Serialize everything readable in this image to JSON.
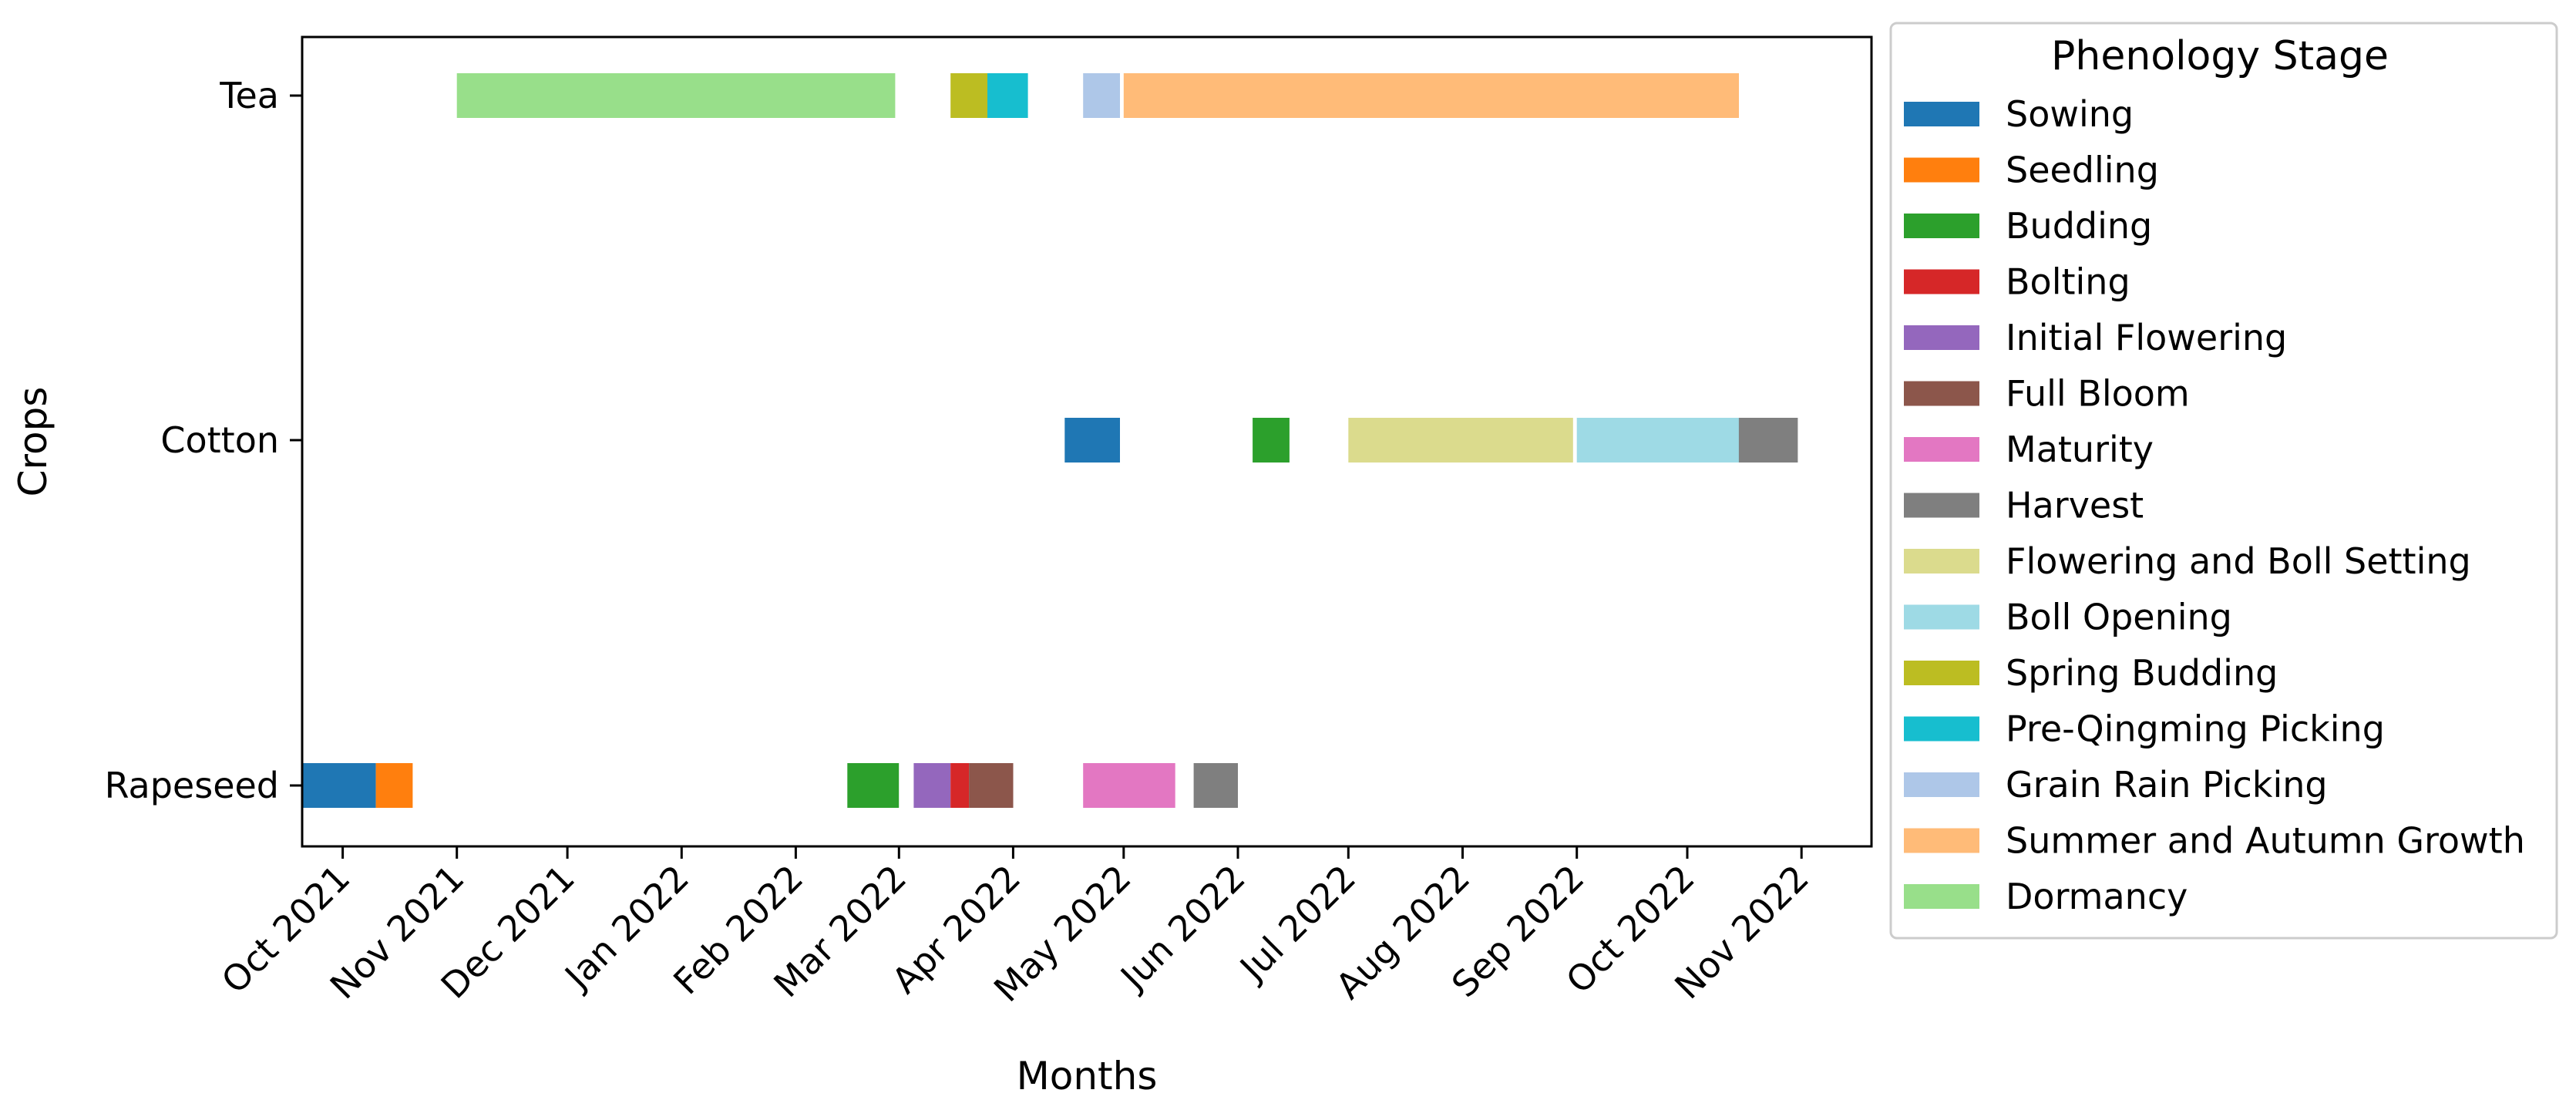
{
  "chart_data": {
    "type": "gantt",
    "xlabel": "Months",
    "ylabel": "Crops",
    "x_tick_labels": [
      "Oct 2021",
      "Nov 2021",
      "Dec 2021",
      "Jan 2022",
      "Feb 2022",
      "Mar 2022",
      "Apr 2022",
      "May 2022",
      "Jun 2022",
      "Jul 2022",
      "Aug 2022",
      "Sep 2022",
      "Oct 2022",
      "Nov 2022"
    ],
    "x_ticks": [
      "2021-10-01",
      "2021-11-01",
      "2021-12-01",
      "2022-01-01",
      "2022-02-01",
      "2022-03-01",
      "2022-04-01",
      "2022-05-01",
      "2022-06-01",
      "2022-07-01",
      "2022-08-01",
      "2022-09-01",
      "2022-10-01",
      "2022-11-01"
    ],
    "xlim": [
      "2021-09-20",
      "2022-11-20"
    ],
    "crops": [
      "Tea",
      "Cotton",
      "Rapeseed"
    ],
    "legend_title": "Phenology Stage",
    "legend_position": "outside-right",
    "stages": [
      {
        "name": "Sowing",
        "color": "#1f77b4"
      },
      {
        "name": "Seedling",
        "color": "#ff7f0e"
      },
      {
        "name": "Budding",
        "color": "#2ca02c"
      },
      {
        "name": "Bolting",
        "color": "#d62728"
      },
      {
        "name": "Initial Flowering",
        "color": "#9467bd"
      },
      {
        "name": "Full Bloom",
        "color": "#8c564b"
      },
      {
        "name": "Maturity",
        "color": "#e377c2"
      },
      {
        "name": "Harvest",
        "color": "#7f7f7f"
      },
      {
        "name": "Flowering and Boll Setting",
        "color": "#dbdb8d"
      },
      {
        "name": "Boll Opening",
        "color": "#9edae5"
      },
      {
        "name": "Spring Budding",
        "color": "#bcbd22"
      },
      {
        "name": "Pre-Qingming Picking",
        "color": "#17becf"
      },
      {
        "name": "Grain Rain Picking",
        "color": "#aec7e8"
      },
      {
        "name": "Summer and Autumn Growth",
        "color": "#ffbb78"
      },
      {
        "name": "Dormancy",
        "color": "#98df8a"
      }
    ],
    "tasks": [
      {
        "crop": "Tea",
        "stage": "Dormancy",
        "start": "2021-11-01",
        "end": "2022-02-28"
      },
      {
        "crop": "Tea",
        "stage": "Spring Budding",
        "start": "2022-03-15",
        "end": "2022-03-25"
      },
      {
        "crop": "Tea",
        "stage": "Pre-Qingming Picking",
        "start": "2022-03-25",
        "end": "2022-04-05"
      },
      {
        "crop": "Tea",
        "stage": "Grain Rain Picking",
        "start": "2022-04-20",
        "end": "2022-04-30"
      },
      {
        "crop": "Tea",
        "stage": "Summer and Autumn Growth",
        "start": "2022-05-01",
        "end": "2022-10-15"
      },
      {
        "crop": "Cotton",
        "stage": "Sowing",
        "start": "2022-04-15",
        "end": "2022-04-30"
      },
      {
        "crop": "Cotton",
        "stage": "Budding",
        "start": "2022-06-05",
        "end": "2022-06-15"
      },
      {
        "crop": "Cotton",
        "stage": "Flowering and Boll Setting",
        "start": "2022-07-01",
        "end": "2022-08-31"
      },
      {
        "crop": "Cotton",
        "stage": "Boll Opening",
        "start": "2022-09-01",
        "end": "2022-10-15"
      },
      {
        "crop": "Cotton",
        "stage": "Harvest",
        "start": "2022-10-15",
        "end": "2022-10-31"
      },
      {
        "crop": "Rapeseed",
        "stage": "Sowing",
        "start": "2021-09-20",
        "end": "2021-10-10"
      },
      {
        "crop": "Rapeseed",
        "stage": "Seedling",
        "start": "2021-10-10",
        "end": "2021-10-20"
      },
      {
        "crop": "Rapeseed",
        "stage": "Budding",
        "start": "2022-02-15",
        "end": "2022-03-01"
      },
      {
        "crop": "Rapeseed",
        "stage": "Initial Flowering",
        "start": "2022-03-05",
        "end": "2022-03-15"
      },
      {
        "crop": "Rapeseed",
        "stage": "Bolting",
        "start": "2022-03-15",
        "end": "2022-03-20"
      },
      {
        "crop": "Rapeseed",
        "stage": "Full Bloom",
        "start": "2022-03-20",
        "end": "2022-04-01"
      },
      {
        "crop": "Rapeseed",
        "stage": "Maturity",
        "start": "2022-04-20",
        "end": "2022-05-15"
      },
      {
        "crop": "Rapeseed",
        "stage": "Harvest",
        "start": "2022-05-20",
        "end": "2022-06-01"
      }
    ]
  }
}
